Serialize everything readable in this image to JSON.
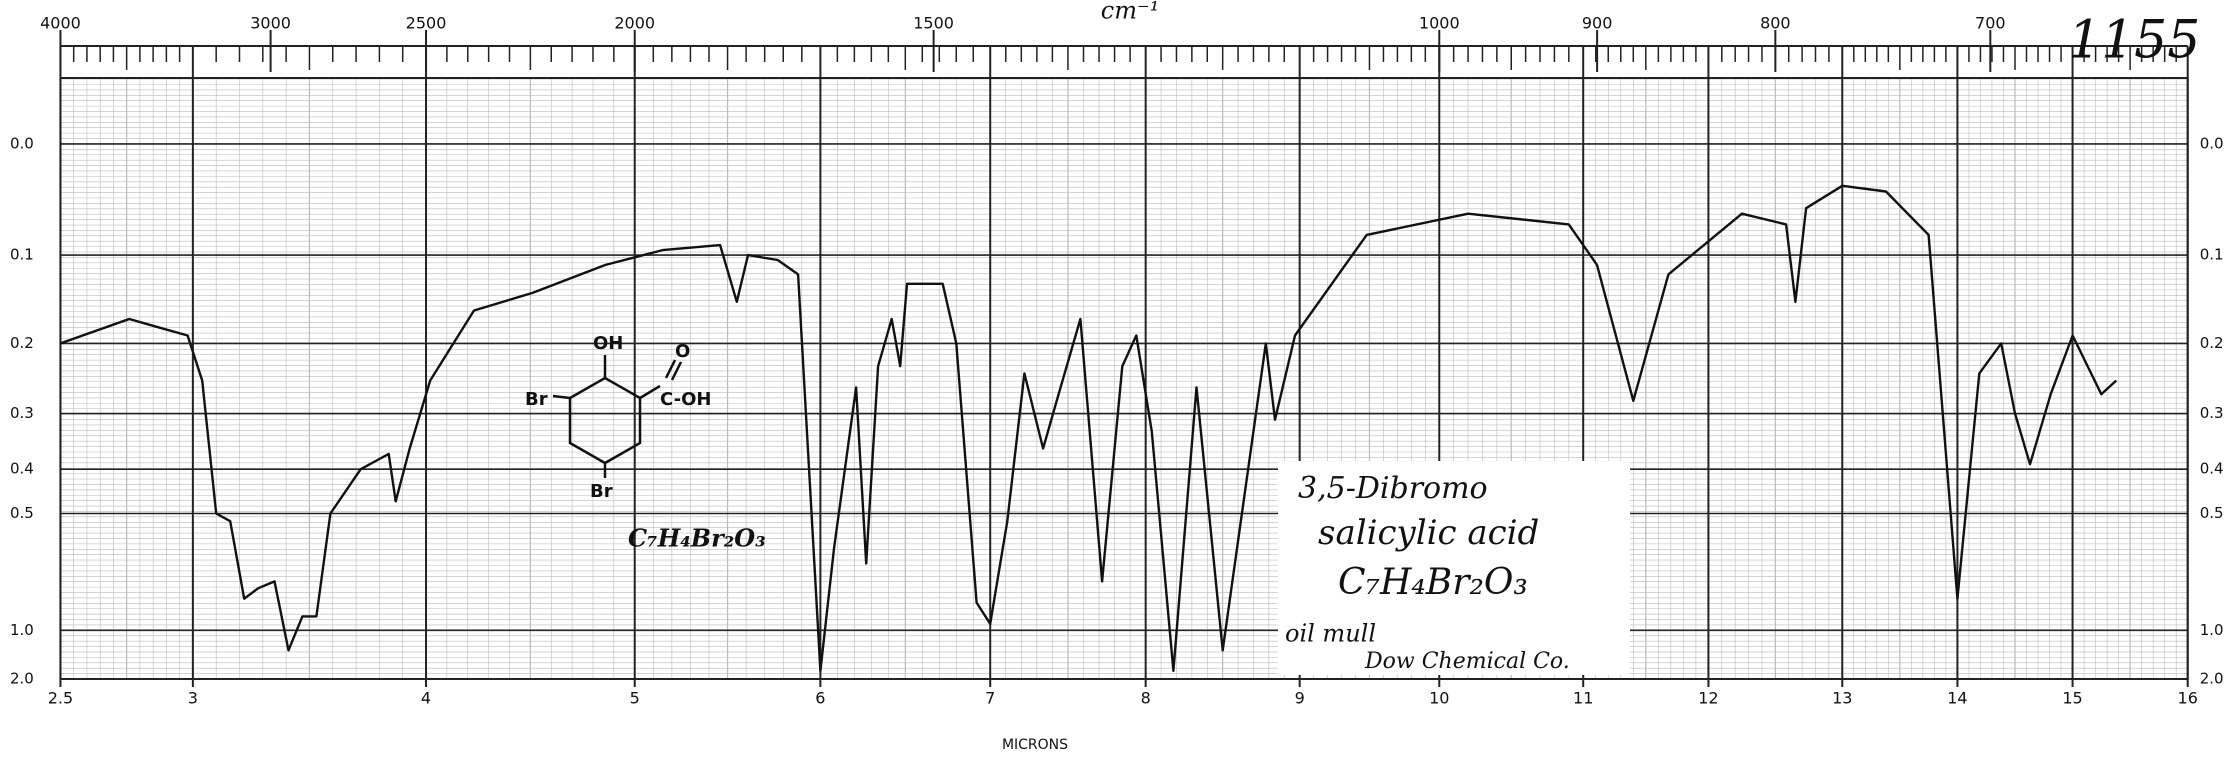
{
  "chart_data": {
    "type": "line",
    "id_number": "1155",
    "x2label": "cm⁻¹",
    "xlabel": "MICRONS",
    "compound_lines": [
      "3,5-Dibromo",
      "salicylic acid",
      "C₇H₄Br₂O₃"
    ],
    "method": "oil mull",
    "source": "Dow Chemical Co.",
    "structure_labels": [
      "OH",
      "O",
      "C-OH",
      "Br",
      "Br"
    ],
    "structure_formula": "C₇H₄Br₂O₃",
    "color": "#111111",
    "grid": true,
    "y_scale": "absorbance",
    "xlim": [
      2.5,
      16
    ],
    "xticks": [
      2.5,
      3,
      4,
      5,
      6,
      7,
      8,
      9,
      10,
      11,
      12,
      13,
      14,
      15,
      16
    ],
    "x2ticks": [
      4000,
      3000,
      2500,
      2000,
      1500,
      1000,
      900,
      800,
      700
    ],
    "ylim": [
      -0.05,
      2
    ],
    "yticks": [
      {
        "value": 0,
        "label": "0.0"
      },
      0.1,
      0.2,
      0.3,
      0.4,
      0.5,
      {
        "value": 1,
        "label": "1.0"
      },
      {
        "value": 2,
        "label": "2.0"
      }
    ],
    "x": [
      2.5,
      2.76,
      2.87,
      2.98,
      3.04,
      3.1,
      3.16,
      3.22,
      3.28,
      3.35,
      3.41,
      3.47,
      3.53,
      3.59,
      3.72,
      3.84,
      3.87,
      3.93,
      4.02,
      4.23,
      4.51,
      4.86,
      5.15,
      5.46,
      5.55,
      5.61,
      5.77,
      5.88,
      6.0,
      6.08,
      6.21,
      6.27,
      6.34,
      6.42,
      6.47,
      6.51,
      6.72,
      6.8,
      6.92,
      7.0,
      7.11,
      7.22,
      7.34,
      7.44,
      7.58,
      7.72,
      7.85,
      7.94,
      8.04,
      8.18,
      8.33,
      8.5,
      8.78,
      8.84,
      8.97,
      9.48,
      10.2,
      10.9,
      11.11,
      11.4,
      11.68,
      12.25,
      12.58,
      12.65,
      12.73,
      13.0,
      13.38,
      13.75,
      14.0,
      14.19,
      14.38,
      14.5,
      14.63,
      14.81,
      15.0,
      15.25,
      15.38
    ],
    "values": [
      0.2,
      0.17,
      0.18,
      0.19,
      0.25,
      0.5,
      0.52,
      0.8,
      0.75,
      0.72,
      1.2,
      0.9,
      0.9,
      0.5,
      0.4,
      0.37,
      0.47,
      0.36,
      0.25,
      0.16,
      0.14,
      0.11,
      0.095,
      0.09,
      0.15,
      0.1,
      0.105,
      0.12,
      1.6,
      0.6,
      0.26,
      0.65,
      0.23,
      0.17,
      0.23,
      0.13,
      0.13,
      0.2,
      0.82,
      0.95,
      0.52,
      0.24,
      0.36,
      0.27,
      0.17,
      0.72,
      0.23,
      0.19,
      0.33,
      1.6,
      0.26,
      1.2,
      0.2,
      0.31,
      0.19,
      0.08,
      0.06,
      0.07,
      0.11,
      0.28,
      0.12,
      0.06,
      0.07,
      0.15,
      0.055,
      0.035,
      0.04,
      0.08,
      0.8,
      0.24,
      0.2,
      0.3,
      0.39,
      0.27,
      0.19,
      0.27,
      0.25
    ]
  }
}
